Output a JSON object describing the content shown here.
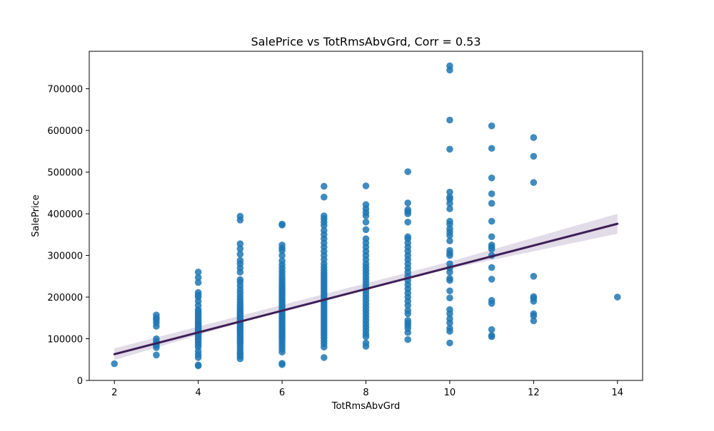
{
  "chart_data": {
    "type": "scatter",
    "title": "SalePrice vs TotRmsAbvGrd, Corr = 0.53",
    "xlabel": "TotRmsAbvGrd",
    "ylabel": "SalePrice",
    "xlim": [
      1.4,
      14.6
    ],
    "ylim": [
      0,
      790000
    ],
    "x_ticks": [
      2,
      4,
      6,
      8,
      10,
      12,
      14
    ],
    "y_ticks": [
      0,
      100000,
      200000,
      300000,
      400000,
      500000,
      600000,
      700000
    ],
    "grid": false,
    "colors": {
      "points": "#1f77b4",
      "regression": "#3f1f57",
      "confidence_band": "#d8cfe0"
    },
    "regression": {
      "x": [
        2,
        14
      ],
      "y": [
        63000,
        376000
      ]
    },
    "confidence_band": {
      "x": [
        2,
        6,
        10,
        14
      ],
      "upper": [
        77000,
        181000,
        285000,
        400000
      ],
      "lower": [
        49000,
        169000,
        268000,
        352000
      ]
    },
    "series": [
      {
        "points": [
          [
            2,
            40000
          ],
          [
            3,
            61000
          ],
          [
            3,
            79000
          ],
          [
            3,
            84000
          ],
          [
            3,
            88000
          ],
          [
            3,
            93000
          ],
          [
            3,
            100000
          ],
          [
            3,
            130000
          ],
          [
            3,
            138000
          ],
          [
            3,
            145000
          ],
          [
            3,
            150000
          ],
          [
            3,
            157000
          ],
          [
            4,
            35000
          ],
          [
            4,
            37000
          ],
          [
            4,
            55000
          ],
          [
            4,
            62000
          ],
          [
            4,
            70000
          ],
          [
            4,
            80000
          ],
          [
            4,
            86000
          ],
          [
            4,
            92000
          ],
          [
            4,
            98000
          ],
          [
            4,
            103000
          ],
          [
            4,
            108000
          ],
          [
            4,
            112000
          ],
          [
            4,
            116000
          ],
          [
            4,
            120000
          ],
          [
            4,
            124000
          ],
          [
            4,
            128000
          ],
          [
            4,
            132000
          ],
          [
            4,
            136000
          ],
          [
            4,
            140000
          ],
          [
            4,
            145000
          ],
          [
            4,
            150000
          ],
          [
            4,
            155000
          ],
          [
            4,
            160000
          ],
          [
            4,
            165000
          ],
          [
            4,
            170000
          ],
          [
            4,
            180000
          ],
          [
            4,
            190000
          ],
          [
            4,
            200000
          ],
          [
            4,
            205000
          ],
          [
            4,
            211000
          ],
          [
            4,
            235000
          ],
          [
            4,
            247000
          ],
          [
            4,
            260000
          ],
          [
            5,
            52000
          ],
          [
            5,
            58000
          ],
          [
            5,
            63000
          ],
          [
            5,
            68000
          ],
          [
            5,
            75000
          ],
          [
            5,
            82000
          ],
          [
            5,
            88000
          ],
          [
            5,
            93000
          ],
          [
            5,
            98000
          ],
          [
            5,
            103000
          ],
          [
            5,
            108000
          ],
          [
            5,
            113000
          ],
          [
            5,
            117000
          ],
          [
            5,
            121000
          ],
          [
            5,
            125000
          ],
          [
            5,
            129000
          ],
          [
            5,
            133000
          ],
          [
            5,
            137000
          ],
          [
            5,
            141000
          ],
          [
            5,
            145000
          ],
          [
            5,
            149000
          ],
          [
            5,
            153000
          ],
          [
            5,
            157000
          ],
          [
            5,
            161000
          ],
          [
            5,
            166000
          ],
          [
            5,
            171000
          ],
          [
            5,
            176000
          ],
          [
            5,
            182000
          ],
          [
            5,
            188000
          ],
          [
            5,
            195000
          ],
          [
            5,
            202000
          ],
          [
            5,
            210000
          ],
          [
            5,
            218000
          ],
          [
            5,
            227000
          ],
          [
            5,
            236000
          ],
          [
            5,
            242000
          ],
          [
            5,
            260000
          ],
          [
            5,
            270000
          ],
          [
            5,
            280000
          ],
          [
            5,
            288000
          ],
          [
            5,
            303000
          ],
          [
            5,
            316000
          ],
          [
            5,
            328000
          ],
          [
            5,
            385000
          ],
          [
            5,
            394000
          ],
          [
            6,
            38000
          ],
          [
            6,
            41000
          ],
          [
            6,
            68000
          ],
          [
            6,
            75000
          ],
          [
            6,
            82000
          ],
          [
            6,
            88000
          ],
          [
            6,
            94000
          ],
          [
            6,
            100000
          ],
          [
            6,
            105000
          ],
          [
            6,
            110000
          ],
          [
            6,
            115000
          ],
          [
            6,
            120000
          ],
          [
            6,
            125000
          ],
          [
            6,
            130000
          ],
          [
            6,
            135000
          ],
          [
            6,
            140000
          ],
          [
            6,
            145000
          ],
          [
            6,
            150000
          ],
          [
            6,
            155000
          ],
          [
            6,
            160000
          ],
          [
            6,
            165000
          ],
          [
            6,
            170000
          ],
          [
            6,
            175000
          ],
          [
            6,
            180000
          ],
          [
            6,
            185000
          ],
          [
            6,
            190000
          ],
          [
            6,
            195000
          ],
          [
            6,
            200000
          ],
          [
            6,
            205000
          ],
          [
            6,
            210000
          ],
          [
            6,
            215000
          ],
          [
            6,
            220000
          ],
          [
            6,
            225000
          ],
          [
            6,
            230000
          ],
          [
            6,
            236000
          ],
          [
            6,
            242000
          ],
          [
            6,
            248000
          ],
          [
            6,
            255000
          ],
          [
            6,
            262000
          ],
          [
            6,
            270000
          ],
          [
            6,
            278000
          ],
          [
            6,
            287000
          ],
          [
            6,
            300000
          ],
          [
            6,
            312000
          ],
          [
            6,
            318000
          ],
          [
            6,
            325000
          ],
          [
            6,
            373000
          ],
          [
            6,
            375000
          ],
          [
            7,
            55000
          ],
          [
            7,
            80000
          ],
          [
            7,
            88000
          ],
          [
            7,
            95000
          ],
          [
            7,
            102000
          ],
          [
            7,
            108000
          ],
          [
            7,
            114000
          ],
          [
            7,
            120000
          ],
          [
            7,
            126000
          ],
          [
            7,
            132000
          ],
          [
            7,
            138000
          ],
          [
            7,
            144000
          ],
          [
            7,
            150000
          ],
          [
            7,
            156000
          ],
          [
            7,
            162000
          ],
          [
            7,
            168000
          ],
          [
            7,
            174000
          ],
          [
            7,
            180000
          ],
          [
            7,
            186000
          ],
          [
            7,
            192000
          ],
          [
            7,
            198000
          ],
          [
            7,
            204000
          ],
          [
            7,
            210000
          ],
          [
            7,
            216000
          ],
          [
            7,
            222000
          ],
          [
            7,
            228000
          ],
          [
            7,
            234000
          ],
          [
            7,
            240000
          ],
          [
            7,
            246000
          ],
          [
            7,
            252000
          ],
          [
            7,
            258000
          ],
          [
            7,
            265000
          ],
          [
            7,
            272000
          ],
          [
            7,
            280000
          ],
          [
            7,
            290000
          ],
          [
            7,
            300000
          ],
          [
            7,
            310000
          ],
          [
            7,
            320000
          ],
          [
            7,
            330000
          ],
          [
            7,
            340000
          ],
          [
            7,
            350000
          ],
          [
            7,
            360000
          ],
          [
            7,
            372000
          ],
          [
            7,
            380000
          ],
          [
            7,
            388000
          ],
          [
            7,
            395000
          ],
          [
            7,
            440000
          ],
          [
            7,
            466000
          ],
          [
            8,
            82000
          ],
          [
            8,
            90000
          ],
          [
            8,
            105000
          ],
          [
            8,
            112000
          ],
          [
            8,
            120000
          ],
          [
            8,
            128000
          ],
          [
            8,
            136000
          ],
          [
            8,
            144000
          ],
          [
            8,
            152000
          ],
          [
            8,
            160000
          ],
          [
            8,
            168000
          ],
          [
            8,
            176000
          ],
          [
            8,
            184000
          ],
          [
            8,
            192000
          ],
          [
            8,
            200000
          ],
          [
            8,
            208000
          ],
          [
            8,
            216000
          ],
          [
            8,
            224000
          ],
          [
            8,
            232000
          ],
          [
            8,
            240000
          ],
          [
            8,
            248000
          ],
          [
            8,
            256000
          ],
          [
            8,
            264000
          ],
          [
            8,
            272000
          ],
          [
            8,
            280000
          ],
          [
            8,
            290000
          ],
          [
            8,
            300000
          ],
          [
            8,
            310000
          ],
          [
            8,
            320000
          ],
          [
            8,
            330000
          ],
          [
            8,
            340000
          ],
          [
            8,
            362000
          ],
          [
            8,
            380000
          ],
          [
            8,
            395000
          ],
          [
            8,
            403000
          ],
          [
            8,
            412000
          ],
          [
            8,
            422000
          ],
          [
            8,
            467000
          ],
          [
            9,
            98000
          ],
          [
            9,
            115000
          ],
          [
            9,
            125000
          ],
          [
            9,
            132000
          ],
          [
            9,
            138000
          ],
          [
            9,
            144000
          ],
          [
            9,
            160000
          ],
          [
            9,
            168000
          ],
          [
            9,
            180000
          ],
          [
            9,
            190000
          ],
          [
            9,
            200000
          ],
          [
            9,
            210000
          ],
          [
            9,
            220000
          ],
          [
            9,
            230000
          ],
          [
            9,
            240000
          ],
          [
            9,
            250000
          ],
          [
            9,
            260000
          ],
          [
            9,
            270000
          ],
          [
            9,
            280000
          ],
          [
            9,
            290000
          ],
          [
            9,
            300000
          ],
          [
            9,
            310000
          ],
          [
            9,
            320000
          ],
          [
            9,
            330000
          ],
          [
            9,
            340000
          ],
          [
            9,
            345000
          ],
          [
            9,
            380000
          ],
          [
            9,
            400000
          ],
          [
            9,
            405000
          ],
          [
            9,
            410000
          ],
          [
            9,
            426000
          ],
          [
            9,
            501000
          ],
          [
            10,
            90000
          ],
          [
            10,
            118000
          ],
          [
            10,
            125000
          ],
          [
            10,
            138000
          ],
          [
            10,
            148000
          ],
          [
            10,
            160000
          ],
          [
            10,
            170000
          ],
          [
            10,
            198000
          ],
          [
            10,
            215000
          ],
          [
            10,
            240000
          ],
          [
            10,
            245000
          ],
          [
            10,
            260000
          ],
          [
            10,
            270000
          ],
          [
            10,
            280000
          ],
          [
            10,
            300000
          ],
          [
            10,
            305000
          ],
          [
            10,
            312000
          ],
          [
            10,
            335000
          ],
          [
            10,
            348000
          ],
          [
            10,
            356000
          ],
          [
            10,
            364000
          ],
          [
            10,
            375000
          ],
          [
            10,
            382000
          ],
          [
            10,
            412000
          ],
          [
            10,
            425000
          ],
          [
            10,
            435000
          ],
          [
            10,
            440000
          ],
          [
            10,
            452000
          ],
          [
            10,
            555000
          ],
          [
            10,
            625000
          ],
          [
            10,
            745000
          ],
          [
            10,
            755000
          ],
          [
            11,
            105000
          ],
          [
            11,
            108000
          ],
          [
            11,
            122000
          ],
          [
            11,
            185000
          ],
          [
            11,
            192000
          ],
          [
            11,
            243000
          ],
          [
            11,
            271000
          ],
          [
            11,
            300000
          ],
          [
            11,
            315000
          ],
          [
            11,
            320000
          ],
          [
            11,
            325000
          ],
          [
            11,
            345000
          ],
          [
            11,
            382000
          ],
          [
            11,
            425000
          ],
          [
            11,
            448000
          ],
          [
            11,
            486000
          ],
          [
            11,
            557000
          ],
          [
            11,
            611000
          ],
          [
            12,
            143000
          ],
          [
            12,
            155000
          ],
          [
            12,
            160000
          ],
          [
            12,
            190000
          ],
          [
            12,
            197000
          ],
          [
            12,
            201000
          ],
          [
            12,
            250000
          ],
          [
            12,
            475000
          ],
          [
            12,
            538000
          ],
          [
            12,
            583000
          ],
          [
            14,
            200000
          ]
        ]
      }
    ]
  }
}
